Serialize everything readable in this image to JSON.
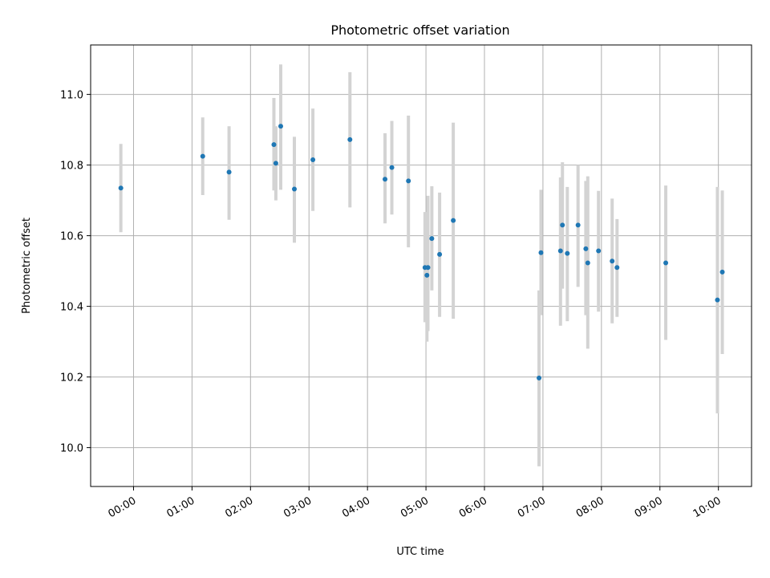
{
  "chart_data": {
    "type": "scatter",
    "title": "Photometric offset variation",
    "xlabel": "UTC time",
    "ylabel": "Photometric offset",
    "xlim": [
      "-00:44",
      "10:34"
    ],
    "ylim": [
      9.89,
      11.14
    ],
    "grid": true,
    "x_ticks": [
      "00:00",
      "01:00",
      "02:00",
      "03:00",
      "04:00",
      "05:00",
      "06:00",
      "07:00",
      "08:00",
      "09:00",
      "10:00"
    ],
    "y_ticks": [
      "10.0",
      "10.2",
      "10.4",
      "10.6",
      "10.8",
      "11.0"
    ],
    "marker_color": "#1f77b4",
    "errorbar_color": "#d3d3d3",
    "points": [
      {
        "x": "23:47",
        "y": 10.735,
        "ylow": 10.61,
        "yhigh": 10.86
      },
      {
        "x": "01:11",
        "y": 10.825,
        "ylow": 10.715,
        "yhigh": 10.935
      },
      {
        "x": "01:38",
        "y": 10.78,
        "ylow": 10.645,
        "yhigh": 10.91
      },
      {
        "x": "02:24",
        "y": 10.858,
        "ylow": 10.728,
        "yhigh": 10.99
      },
      {
        "x": "02:26",
        "y": 10.805,
        "ylow": 10.7,
        "yhigh": 10.91
      },
      {
        "x": "02:31",
        "y": 10.91,
        "ylow": 10.73,
        "yhigh": 11.085
      },
      {
        "x": "02:45",
        "y": 10.732,
        "ylow": 10.58,
        "yhigh": 10.88
      },
      {
        "x": "03:04",
        "y": 10.815,
        "ylow": 10.67,
        "yhigh": 10.96
      },
      {
        "x": "03:42",
        "y": 10.872,
        "ylow": 10.68,
        "yhigh": 11.063
      },
      {
        "x": "04:18",
        "y": 10.76,
        "ylow": 10.635,
        "yhigh": 10.89
      },
      {
        "x": "04:25",
        "y": 10.793,
        "ylow": 10.66,
        "yhigh": 10.925
      },
      {
        "x": "04:42",
        "y": 10.755,
        "ylow": 10.567,
        "yhigh": 10.94
      },
      {
        "x": "04:59",
        "y": 10.51,
        "ylow": 10.355,
        "yhigh": 10.667
      },
      {
        "x": "05:01",
        "y": 10.488,
        "ylow": 10.3,
        "yhigh": 10.65
      },
      {
        "x": "05:02",
        "y": 10.51,
        "ylow": 10.33,
        "yhigh": 10.713
      },
      {
        "x": "05:06",
        "y": 10.592,
        "ylow": 10.445,
        "yhigh": 10.74
      },
      {
        "x": "05:14",
        "y": 10.547,
        "ylow": 10.37,
        "yhigh": 10.722
      },
      {
        "x": "05:28",
        "y": 10.643,
        "ylow": 10.365,
        "yhigh": 10.92
      },
      {
        "x": "06:56",
        "y": 10.197,
        "ylow": 9.947,
        "yhigh": 10.445
      },
      {
        "x": "06:58",
        "y": 10.552,
        "ylow": 10.375,
        "yhigh": 10.73
      },
      {
        "x": "07:18",
        "y": 10.557,
        "ylow": 10.345,
        "yhigh": 10.765
      },
      {
        "x": "07:20",
        "y": 10.63,
        "ylow": 10.45,
        "yhigh": 10.808
      },
      {
        "x": "07:25",
        "y": 10.55,
        "ylow": 10.358,
        "yhigh": 10.738
      },
      {
        "x": "07:36",
        "y": 10.63,
        "ylow": 10.455,
        "yhigh": 10.8
      },
      {
        "x": "07:44",
        "y": 10.563,
        "ylow": 10.375,
        "yhigh": 10.755
      },
      {
        "x": "07:46",
        "y": 10.523,
        "ylow": 10.28,
        "yhigh": 10.768
      },
      {
        "x": "07:57",
        "y": 10.557,
        "ylow": 10.385,
        "yhigh": 10.727
      },
      {
        "x": "08:11",
        "y": 10.528,
        "ylow": 10.352,
        "yhigh": 10.705
      },
      {
        "x": "08:16",
        "y": 10.51,
        "ylow": 10.37,
        "yhigh": 10.647
      },
      {
        "x": "09:06",
        "y": 10.523,
        "ylow": 10.305,
        "yhigh": 10.742
      },
      {
        "x": "09:59",
        "y": 10.418,
        "ylow": 10.097,
        "yhigh": 10.738
      },
      {
        "x": "10:04",
        "y": 10.497,
        "ylow": 10.265,
        "yhigh": 10.728
      }
    ]
  }
}
